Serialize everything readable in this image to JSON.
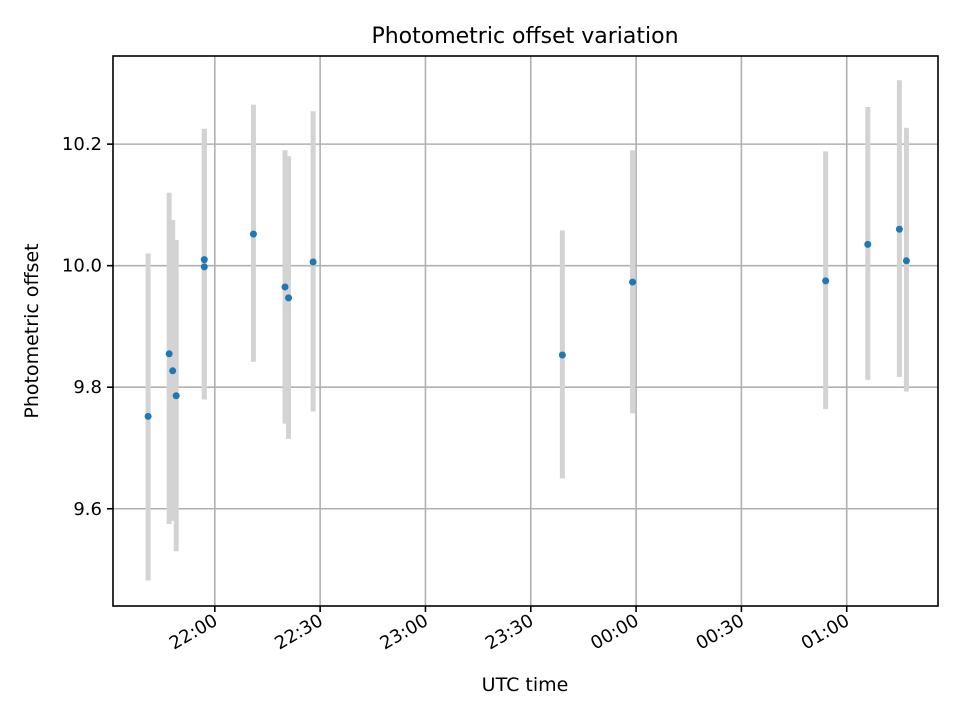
{
  "chart_data": {
    "type": "scatter",
    "title": "Photometric offset variation",
    "xlabel": "UTC time",
    "ylabel": "Photometric offset",
    "x_ticks": [
      "22:00",
      "22:30",
      "23:00",
      "23:30",
      "00:00",
      "00:30",
      "01:00"
    ],
    "y_ticks": [
      "9.6",
      "9.8",
      "10.0",
      "10.2"
    ],
    "x_axis_type": "time",
    "xlim": [
      "21:31",
      "01:26"
    ],
    "ylim": [
      9.44,
      10.345
    ],
    "grid": true,
    "series": [
      {
        "points": [
          {
            "x": "21:41",
            "y": 9.752,
            "err_low": 9.482,
            "err_high": 10.02
          },
          {
            "x": "21:47",
            "y": 9.855,
            "err_low": 9.575,
            "err_high": 10.12
          },
          {
            "x": "21:48",
            "y": 9.827,
            "err_low": 9.58,
            "err_high": 10.075
          },
          {
            "x": "21:49",
            "y": 9.786,
            "err_low": 9.53,
            "err_high": 10.042
          },
          {
            "x": "21:57",
            "y": 10.01,
            "err_low": 9.78,
            "err_high": 10.225
          },
          {
            "x": "21:57",
            "y": 9.998,
            "err_low": 9.78,
            "err_high": 10.225
          },
          {
            "x": "22:11",
            "y": 10.052,
            "err_low": 9.842,
            "err_high": 10.265
          },
          {
            "x": "22:20",
            "y": 9.965,
            "err_low": 9.74,
            "err_high": 10.19
          },
          {
            "x": "22:21",
            "y": 9.947,
            "err_low": 9.715,
            "err_high": 10.18
          },
          {
            "x": "22:28",
            "y": 10.006,
            "err_low": 9.76,
            "err_high": 10.254
          },
          {
            "x": "23:39",
            "y": 9.853,
            "err_low": 9.65,
            "err_high": 10.058
          },
          {
            "x": "23:59",
            "y": 9.973,
            "err_low": 9.757,
            "err_high": 10.19
          },
          {
            "x": "00:54",
            "y": 9.975,
            "err_low": 9.764,
            "err_high": 10.188
          },
          {
            "x": "01:06",
            "y": 10.035,
            "err_low": 9.812,
            "err_high": 10.261
          },
          {
            "x": "01:15",
            "y": 10.06,
            "err_low": 9.817,
            "err_high": 10.305
          },
          {
            "x": "01:17",
            "y": 10.008,
            "err_low": 9.793,
            "err_high": 10.227
          }
        ],
        "color": "#1f77b4",
        "errorbar_color": "#d3d3d3"
      }
    ]
  }
}
